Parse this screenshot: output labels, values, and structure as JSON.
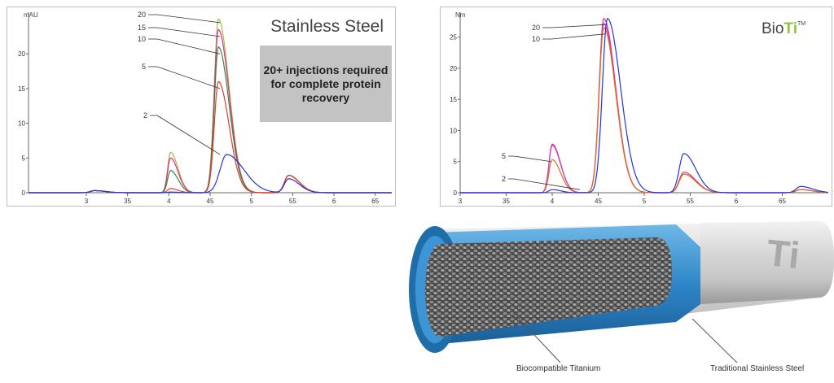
{
  "colors": {
    "inj_20": "#9ac23c",
    "inj_15": "#ec2a8c",
    "inj_10": "#2f8a47",
    "inj_5": "#e53b2a",
    "inj_2": "#2233dd",
    "bioti_10": "#c83ac8",
    "bioti_20": "#e0307a",
    "bioti_5": "#d9731c",
    "bioti_2": "#2233dd",
    "ti_green": "#8dc63f",
    "callout_bg": "#c3c3c3",
    "column_blue": "#2e86c8"
  },
  "chart_data": [
    {
      "type": "line",
      "title": "Stainless Steel",
      "y_unit_label": "mAU",
      "xlim": [
        2.3,
        6.7
      ],
      "ylim": [
        0,
        26
      ],
      "x_ticks": [
        "3",
        "35",
        "4",
        "45",
        "5",
        "55",
        "6",
        "65"
      ],
      "x_tick_values": [
        3.0,
        3.5,
        4.0,
        4.5,
        5.0,
        5.5,
        6.0,
        6.5
      ],
      "y_ticks": [
        "0",
        "5",
        "10",
        "15",
        "20"
      ],
      "y_tick_values": [
        0,
        5,
        10,
        15,
        20
      ],
      "series": [
        {
          "name": "20",
          "color_key": "inj_20",
          "peaks": [
            [
              3.1,
              0.3,
              0.05
            ],
            [
              4.02,
              5.8,
              0.035
            ],
            [
              4.6,
              25.0,
              0.05
            ],
            [
              5.45,
              2.5,
              0.05
            ]
          ]
        },
        {
          "name": "15",
          "color_key": "inj_15",
          "peaks": [
            [
              3.1,
              0.3,
              0.05
            ],
            [
              4.02,
              5.0,
              0.035
            ],
            [
              4.6,
              23.5,
              0.05
            ],
            [
              5.45,
              2.5,
              0.05
            ]
          ]
        },
        {
          "name": "10",
          "color_key": "inj_10",
          "peaks": [
            [
              3.1,
              0.3,
              0.05
            ],
            [
              4.02,
              3.2,
              0.035
            ],
            [
              4.6,
              21.0,
              0.05
            ],
            [
              5.45,
              2.5,
              0.05
            ]
          ]
        },
        {
          "name": "5",
          "color_key": "inj_5",
          "peaks": [
            [
              3.1,
              0.3,
              0.05
            ],
            [
              4.02,
              0.6,
              0.035
            ],
            [
              4.6,
              16.0,
              0.05
            ],
            [
              5.45,
              2.5,
              0.05
            ]
          ]
        },
        {
          "name": "2",
          "color_key": "inj_2",
          "peaks": [
            [
              3.1,
              0.3,
              0.05
            ],
            [
              4.02,
              0.1,
              0.035
            ],
            [
              4.7,
              5.5,
              0.08
            ],
            [
              5.45,
              2.0,
              0.05
            ]
          ]
        }
      ],
      "labels": [
        "20",
        "15",
        "10",
        "5",
        "2"
      ],
      "callout": "20+ injections required for complete protein recovery"
    },
    {
      "type": "line",
      "title": "BioTi",
      "y_unit_label": "Nm",
      "xlim": [
        3.0,
        7.0
      ],
      "ylim": [
        0,
        29
      ],
      "x_ticks": [
        "3",
        "35",
        "4",
        "45",
        "5",
        "55",
        "6",
        "65"
      ],
      "x_tick_values": [
        3.0,
        3.5,
        4.0,
        4.5,
        5.0,
        5.5,
        6.0,
        6.5
      ],
      "y_ticks": [
        "0",
        "5",
        "10",
        "15",
        "20",
        "25"
      ],
      "y_tick_values": [
        0,
        5,
        10,
        15,
        20,
        25
      ],
      "series": [
        {
          "name": "20",
          "color_key": "bioti_20",
          "peaks": [
            [
              4.0,
              7.8,
              0.035
            ],
            [
              4.56,
              28.0,
              0.05
            ],
            [
              5.43,
              3.3,
              0.05
            ],
            [
              6.7,
              0.5,
              0.05
            ]
          ]
        },
        {
          "name": "10",
          "color_key": "bioti_10",
          "peaks": [
            [
              4.0,
              7.6,
              0.035
            ],
            [
              4.56,
              27.2,
              0.05
            ],
            [
              5.43,
              3.0,
              0.05
            ],
            [
              6.7,
              0.5,
              0.05
            ]
          ]
        },
        {
          "name": "5",
          "color_key": "bioti_5",
          "peaks": [
            [
              4.0,
              5.3,
              0.035
            ],
            [
              4.56,
              26.5,
              0.05
            ],
            [
              5.43,
              3.0,
              0.05
            ],
            [
              6.7,
              0.5,
              0.05
            ]
          ]
        },
        {
          "name": "2",
          "color_key": "bioti_2",
          "peaks": [
            [
              4.0,
              0.5,
              0.035
            ],
            [
              4.6,
              28.0,
              0.055
            ],
            [
              5.43,
              6.3,
              0.05
            ],
            [
              6.7,
              1.0,
              0.05
            ]
          ]
        }
      ],
      "labels": [
        "20",
        "10",
        "5",
        "2"
      ],
      "title_parts": {
        "main": "Bio",
        "accent": "Ti",
        "mark": "TM"
      }
    }
  ],
  "column": {
    "label_inner": "Biocompatible Titanium",
    "label_outer": "Traditional Stainless Steel",
    "end_mark": "Ti"
  }
}
